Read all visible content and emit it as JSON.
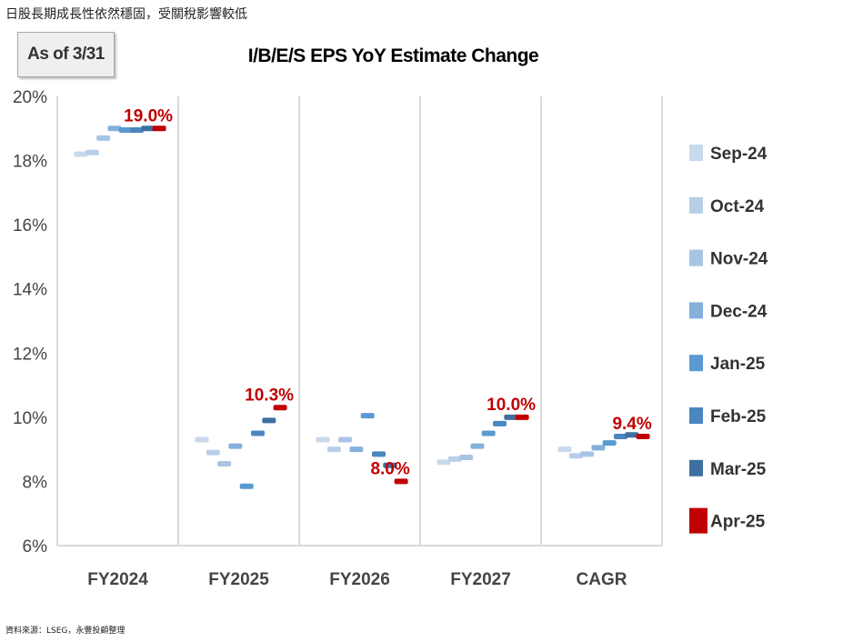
{
  "headline": "日股長期成長性依然穩固，受關稅影響較低",
  "as_of": "As of 3/31",
  "source": "資料來源：LSEG，永豐投顧整理",
  "chart_data": {
    "type": "scatter",
    "title": "I/B/E/S EPS YoY Estimate Change",
    "categories": [
      "FY2024",
      "FY2025",
      "FY2026",
      "FY2027",
      "CAGR"
    ],
    "ylim": [
      6,
      20
    ],
    "yticks": [
      "6%",
      "8%",
      "10%",
      "12%",
      "14%",
      "16%",
      "18%",
      "20%"
    ],
    "grid": "vertical separators",
    "legend_position": "right",
    "series": [
      {
        "name": "Sep-24",
        "color": "#c9d9ec",
        "values": [
          18.2,
          9.3,
          9.3,
          8.6,
          9.0
        ]
      },
      {
        "name": "Oct-24",
        "color": "#b9cfe8",
        "values": [
          18.25,
          8.9,
          9.0,
          8.7,
          8.8
        ]
      },
      {
        "name": "Nov-24",
        "color": "#a7c4e4",
        "values": [
          18.7,
          8.55,
          9.3,
          8.75,
          8.85
        ]
      },
      {
        "name": "Dec-24",
        "color": "#84b0dc",
        "values": [
          19.0,
          9.1,
          9.0,
          9.1,
          9.05
        ]
      },
      {
        "name": "Jan-25",
        "color": "#5b99d2",
        "values": [
          18.95,
          7.85,
          10.05,
          9.5,
          9.2
        ]
      },
      {
        "name": "Feb-25",
        "color": "#4a86c0",
        "values": [
          18.95,
          9.5,
          8.85,
          9.8,
          9.4
        ]
      },
      {
        "name": "Mar-25",
        "color": "#3f6fa0",
        "values": [
          19.0,
          9.9,
          8.5,
          10.0,
          9.45
        ]
      },
      {
        "name": "Apr-25",
        "color": "#c00000",
        "values": [
          19.0,
          10.3,
          8.0,
          10.0,
          9.4
        ]
      }
    ],
    "data_labels": [
      "19.0%",
      "10.3%",
      "8.0%",
      "10.0%",
      "9.4%"
    ]
  }
}
